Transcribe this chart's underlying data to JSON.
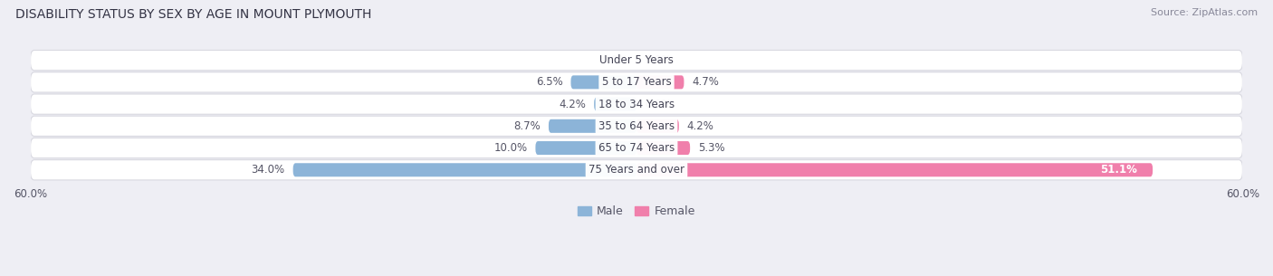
{
  "title": "DISABILITY STATUS BY SEX BY AGE IN MOUNT PLYMOUTH",
  "source": "Source: ZipAtlas.com",
  "categories": [
    "Under 5 Years",
    "5 to 17 Years",
    "18 to 34 Years",
    "35 to 64 Years",
    "65 to 74 Years",
    "75 Years and over"
  ],
  "male_values": [
    0.0,
    6.5,
    4.2,
    8.7,
    10.0,
    34.0
  ],
  "female_values": [
    0.0,
    4.7,
    0.0,
    4.2,
    5.3,
    51.1
  ],
  "male_color": "#8cb4d8",
  "female_color": "#f07fab",
  "axis_max": 60.0,
  "bar_height": 0.62,
  "bg_color": "#eeeef4",
  "row_bg_color": "#ffffff",
  "row_border_color": "#d8d8e0",
  "label_fontsize": 8.5,
  "title_fontsize": 10,
  "source_fontsize": 8,
  "category_fontsize": 8.5,
  "axis_label_fontsize": 8.5,
  "legend_fontsize": 9,
  "value_label_color": "#555566",
  "value_label_inside_color": "#ffffff"
}
